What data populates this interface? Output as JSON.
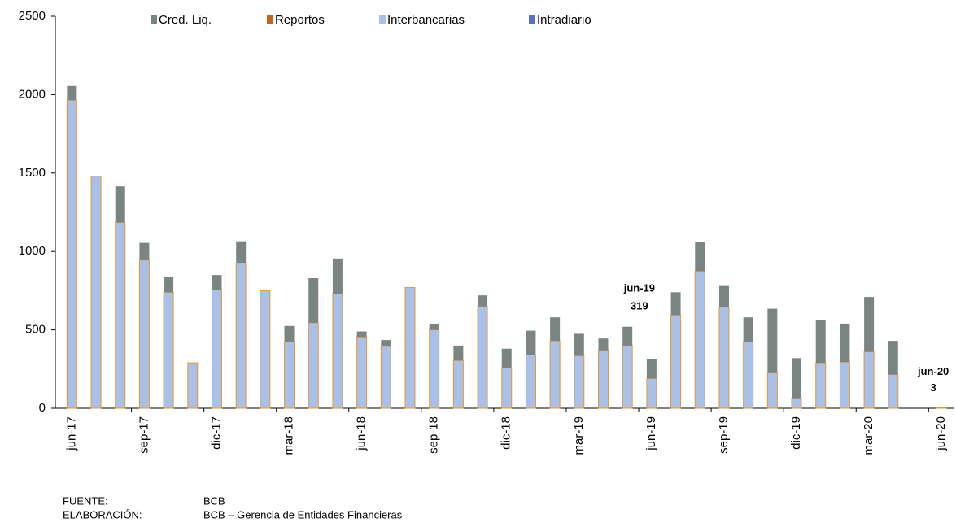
{
  "chart_data": {
    "type": "bar",
    "stacked": true,
    "categories": [
      "jun-17",
      null,
      null,
      "sep-17",
      null,
      null,
      "dic-17",
      null,
      null,
      "mar-18",
      null,
      null,
      "jun-18",
      null,
      null,
      "sep-18",
      null,
      null,
      "dic-18",
      null,
      null,
      "mar-19",
      null,
      null,
      "jun-19",
      null,
      null,
      "sep-19",
      null,
      null,
      "dic-19",
      null,
      null,
      "mar-20",
      null,
      null,
      "jun-20"
    ],
    "series": [
      {
        "name": "Cred. Liq.",
        "color": "#7a8583",
        "values": [
          90,
          0,
          230,
          110,
          100,
          0,
          95,
          140,
          0,
          100,
          285,
          225,
          35,
          40,
          0,
          35,
          95,
          70,
          120,
          155,
          150,
          140,
          75,
          120,
          125,
          145,
          185,
          135,
          155,
          410,
          255,
          275,
          245,
          350,
          215,
          0,
          0
        ]
      },
      {
        "name": "Reportos",
        "color": "#c0651c",
        "values": [
          0,
          0,
          0,
          0,
          0,
          0,
          0,
          0,
          0,
          0,
          0,
          0,
          0,
          0,
          0,
          0,
          0,
          0,
          0,
          0,
          0,
          0,
          0,
          0,
          0,
          0,
          0,
          0,
          0,
          0,
          0,
          0,
          0,
          0,
          0,
          0,
          0
        ]
      },
      {
        "name": "Interbancarias",
        "color": "#a9c1e8",
        "edgecolor": "#e8952e",
        "values": [
          1965,
          1480,
          1185,
          945,
          740,
          290,
          755,
          925,
          750,
          425,
          545,
          730,
          455,
          395,
          770,
          500,
          305,
          650,
          260,
          340,
          430,
          335,
          370,
          400,
          190,
          595,
          875,
          645,
          425,
          225,
          65,
          290,
          295,
          360,
          215,
          0,
          3
        ]
      },
      {
        "name": "Intradiario",
        "color": "#5a72b8",
        "values": [
          0,
          0,
          0,
          0,
          0,
          0,
          0,
          0,
          0,
          0,
          0,
          0,
          0,
          0,
          0,
          0,
          0,
          0,
          0,
          0,
          0,
          0,
          0,
          0,
          0,
          0,
          0,
          0,
          0,
          0,
          0,
          0,
          0,
          0,
          0,
          0,
          0
        ]
      }
    ],
    "ylim": [
      0,
      2500
    ],
    "yticks": [
      0,
      500,
      1000,
      1500,
      2000,
      2500
    ],
    "grid": false,
    "annotations": [
      {
        "label": "jun-19",
        "value": 319
      },
      {
        "label": "jun-20",
        "value": 3
      }
    ],
    "source": {
      "label": "FUENTE:",
      "text": "BCB"
    },
    "credit": {
      "label": "ELABORACIÓN:",
      "text": "BCB – Gerencia de Entidades Financieras"
    }
  }
}
